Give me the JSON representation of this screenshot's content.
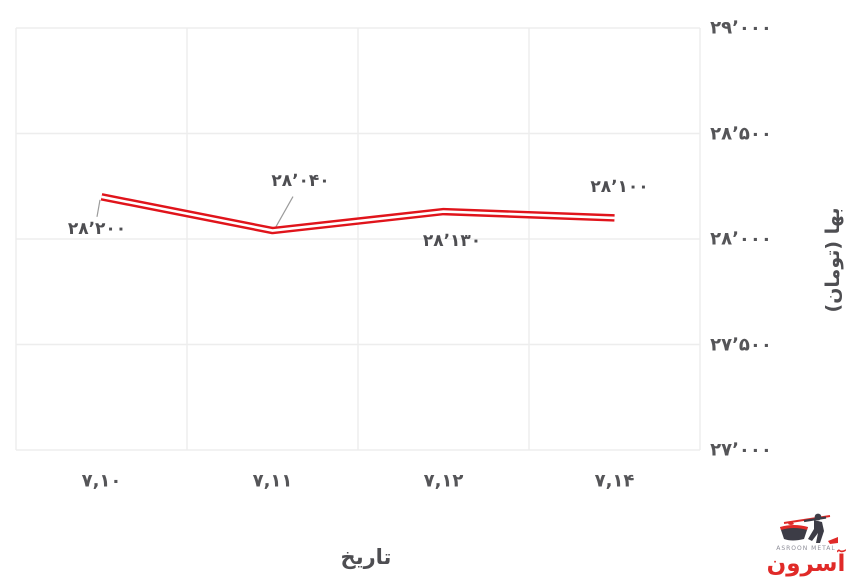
{
  "chart_data": {
    "type": "line",
    "categories": [
      "۷,۱۰",
      "۷,۱۱",
      "۷,۱۲",
      "۷,۱۴"
    ],
    "series": [
      {
        "name": "بها (تومان)",
        "values": [
          28200,
          28040,
          28130,
          28100
        ]
      }
    ],
    "point_labels": [
      "۲۸٬۲۰۰",
      "۲۸٬۰۴۰",
      "۲۸٬۱۳۰",
      "۲۸٬۱۰۰"
    ],
    "xlabel": "تاریخ",
    "ylabel": "بها (تومان)",
    "ylim": [
      27000,
      29000
    ],
    "y_ticks": [
      29000,
      28500,
      28000,
      27500,
      27000
    ],
    "y_tick_labels": [
      "۲۹٬۰۰۰",
      "۲۸٬۵۰۰",
      "۲۸٬۰۰۰",
      "۲۷٬۵۰۰",
      "۲۷٬۰۰۰"
    ],
    "grid": true,
    "legend": "none",
    "colors": {
      "line": "#e0141b",
      "line_core": "#ffffff",
      "grid": "#ededed",
      "leader": "#9b9b9b",
      "tick_text": "#555558",
      "label_text": "#4e4e52"
    }
  },
  "logo": {
    "brand_fa": "آسرون",
    "brand_en": "ASROON METAL"
  }
}
